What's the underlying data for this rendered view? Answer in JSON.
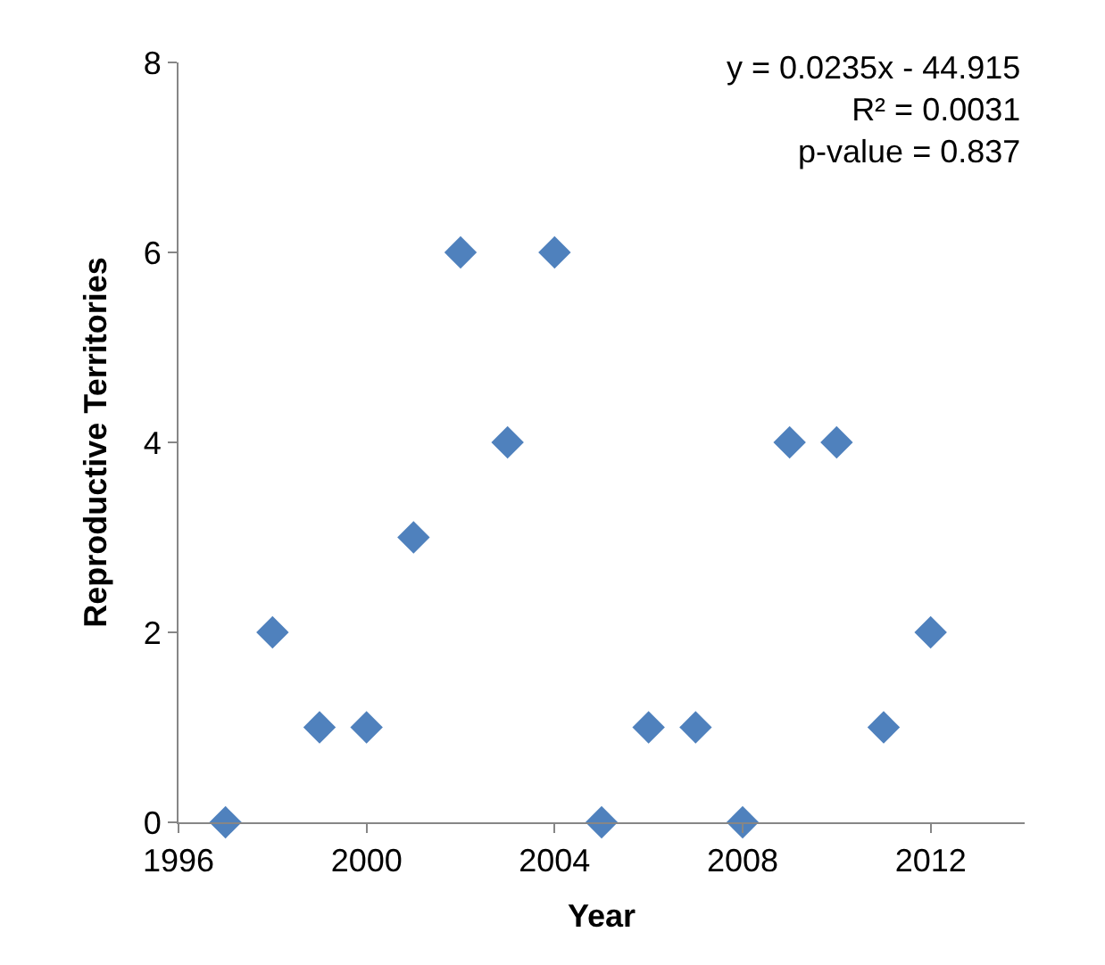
{
  "chart_data": {
    "type": "scatter",
    "xlabel": "Year",
    "ylabel": "Reproductive Territories",
    "x": [
      1997,
      1998,
      1999,
      2000,
      2001,
      2002,
      2003,
      2004,
      2005,
      2006,
      2007,
      2008,
      2009,
      2010,
      2011,
      2012
    ],
    "series": [
      {
        "color": "#4f81bd",
        "values": [
          0,
          2,
          1,
          1,
          3,
          6,
          4,
          6,
          0,
          1,
          1,
          0,
          4,
          4,
          1,
          2
        ]
      }
    ],
    "xlim": [
      1996,
      2014
    ],
    "xticks": [
      1996,
      2000,
      2004,
      2008,
      2012
    ],
    "ylim": [
      0,
      8
    ],
    "yticks": [
      0,
      2,
      4,
      6,
      8
    ],
    "marker": "diamond",
    "annotations": [
      "y = 0.0235x - 44.915",
      "R² = 0.0031",
      "p-value = 0.837"
    ]
  }
}
